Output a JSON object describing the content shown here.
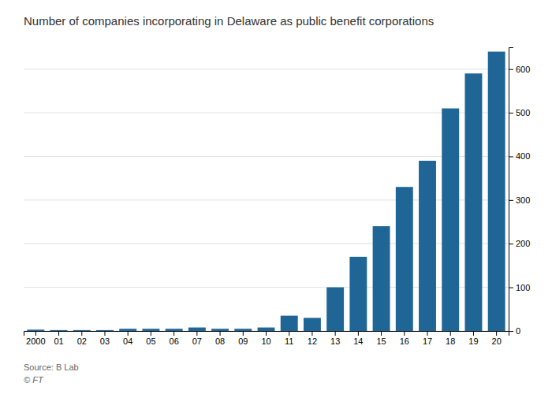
{
  "chart_data": {
    "type": "bar",
    "title": "Number of companies incorporating in Delaware as public benefit corporations",
    "annotations": [
      "Source: B Lab",
      "© FT"
    ],
    "categories": [
      "2000",
      "01",
      "02",
      "03",
      "04",
      "05",
      "06",
      "07",
      "08",
      "09",
      "10",
      "11",
      "12",
      "13",
      "14",
      "15",
      "16",
      "17",
      "18",
      "19",
      "20"
    ],
    "values": [
      3,
      2,
      2,
      2,
      5,
      5,
      5,
      8,
      5,
      5,
      8,
      35,
      30,
      100,
      170,
      240,
      330,
      390,
      510,
      590,
      640
    ],
    "color": "#1f6696",
    "ylim": [
      0,
      650
    ],
    "yticks": [
      0,
      100,
      200,
      300,
      400,
      500,
      600
    ],
    "grid": true
  }
}
